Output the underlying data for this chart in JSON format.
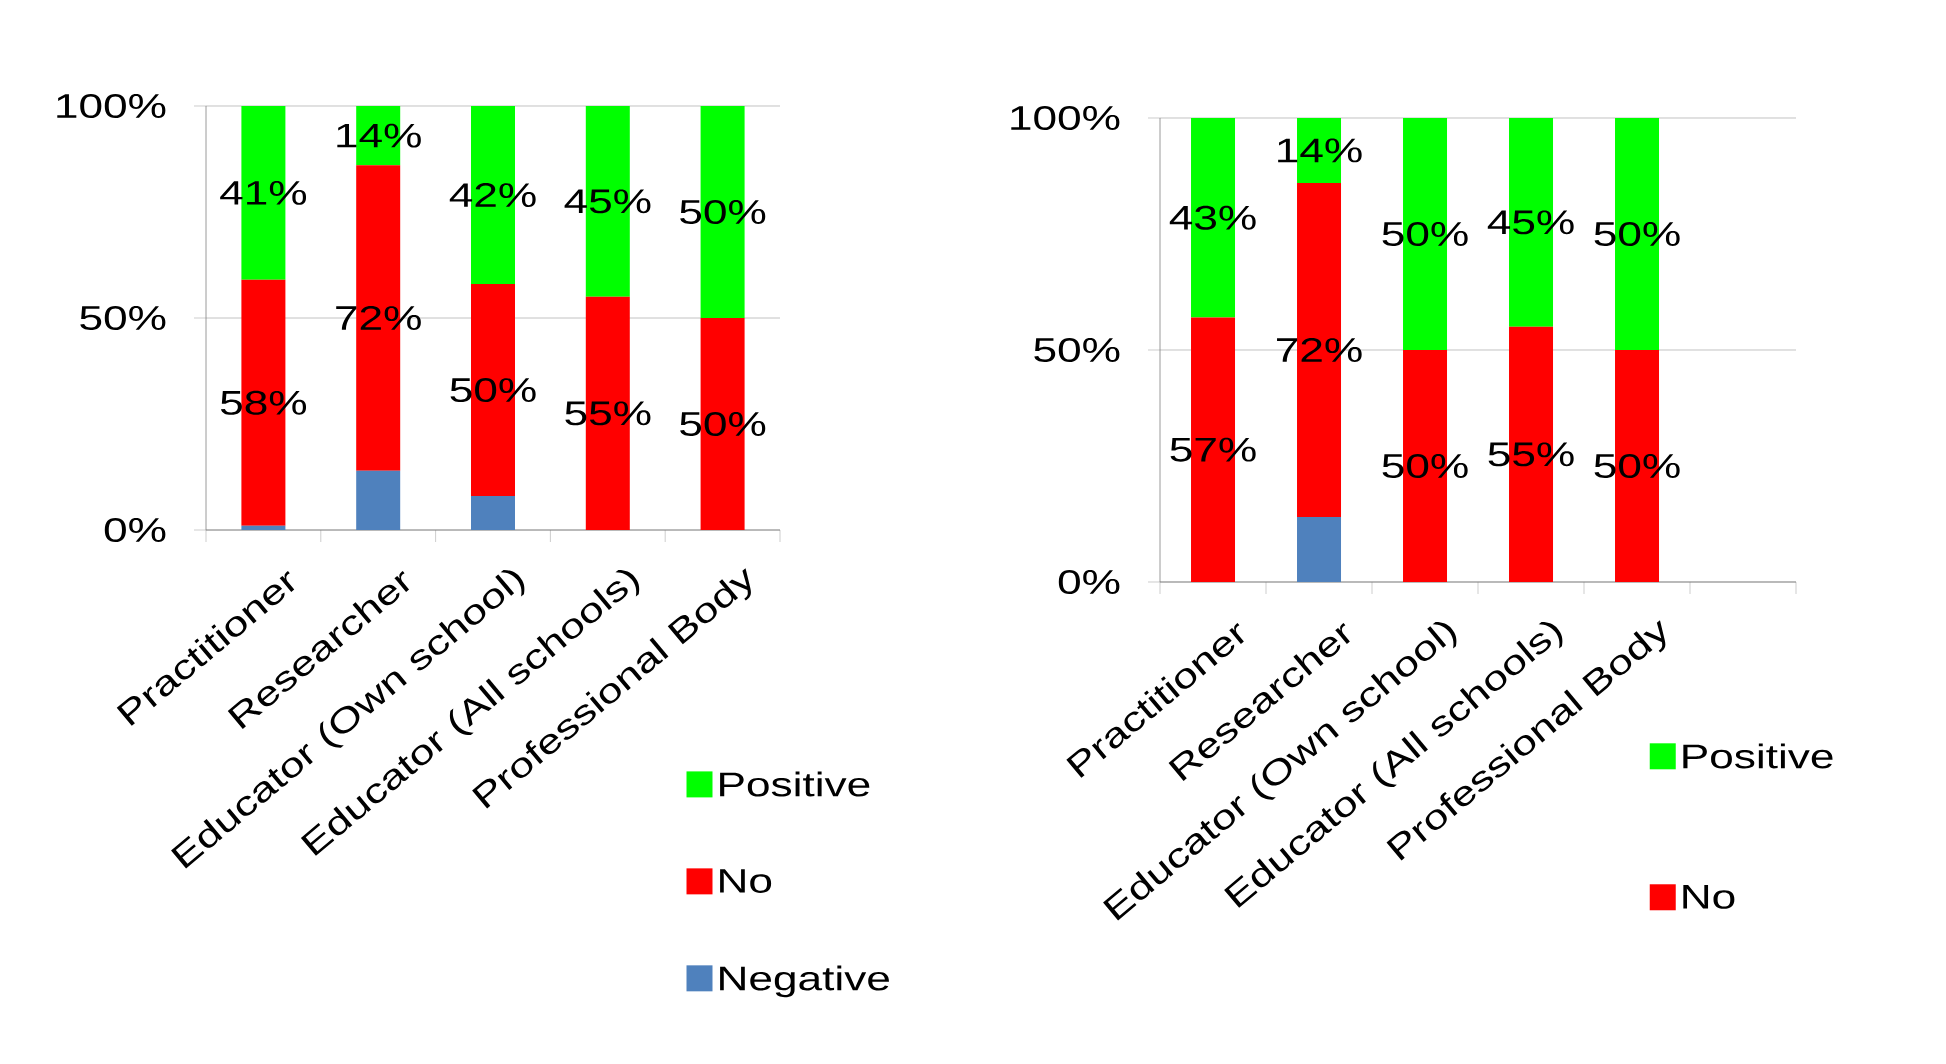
{
  "chart_data": [
    {
      "type": "bar",
      "stacked": true,
      "categories": [
        "Practitioner",
        "Researcher",
        "Educator (Own school)",
        "Educator (All schools)",
        "Professional Body"
      ],
      "series": [
        {
          "name": "Negative",
          "color": "#4f81bd",
          "values": [
            1,
            14,
            8,
            0,
            0
          ]
        },
        {
          "name": "No",
          "color": "#ff0000",
          "values": [
            58,
            72,
            50,
            55,
            50
          ],
          "value_labels": [
            "58%",
            "72%",
            "50%",
            "55%",
            "50%"
          ]
        },
        {
          "name": "Positive",
          "color": "#00ff00",
          "values": [
            41,
            14,
            42,
            45,
            50
          ],
          "value_labels": [
            "41%",
            "14%",
            "42%",
            "45%",
            "50%"
          ]
        }
      ],
      "ylim": [
        0,
        100
      ],
      "yticks": [
        {
          "value": 0,
          "label": "0%"
        },
        {
          "value": 50,
          "label": "50%"
        },
        {
          "value": 100,
          "label": "100%"
        }
      ],
      "grid": "y",
      "legend": "bottom right"
    },
    {
      "type": "bar",
      "stacked": true,
      "categories": [
        "Practitioner",
        "Researcher",
        "Educator (Own school)",
        "Educator (All schools)",
        "Professional Body",
        null
      ],
      "series": [
        {
          "color": "#4f81bd",
          "values": [
            0,
            14,
            0,
            0,
            0,
            null
          ]
        },
        {
          "name": "No",
          "color": "#ff0000",
          "values": [
            57,
            72,
            50,
            55,
            50,
            null
          ],
          "value_labels": [
            "57%",
            "72%",
            "50%",
            "55%",
            "50%",
            null
          ]
        },
        {
          "name": "Positive",
          "color": "#00ff00",
          "values": [
            43,
            14,
            50,
            45,
            50,
            null
          ],
          "value_labels": [
            "43%",
            "14%",
            "50%",
            "45%",
            "50%",
            null
          ]
        }
      ],
      "ylim": [
        0,
        100
      ],
      "yticks": [
        {
          "value": 0,
          "label": "0%"
        },
        {
          "value": 50,
          "label": "50%"
        },
        {
          "value": 100,
          "label": "100%"
        }
      ],
      "grid": "y",
      "legend": "bottom right"
    }
  ]
}
